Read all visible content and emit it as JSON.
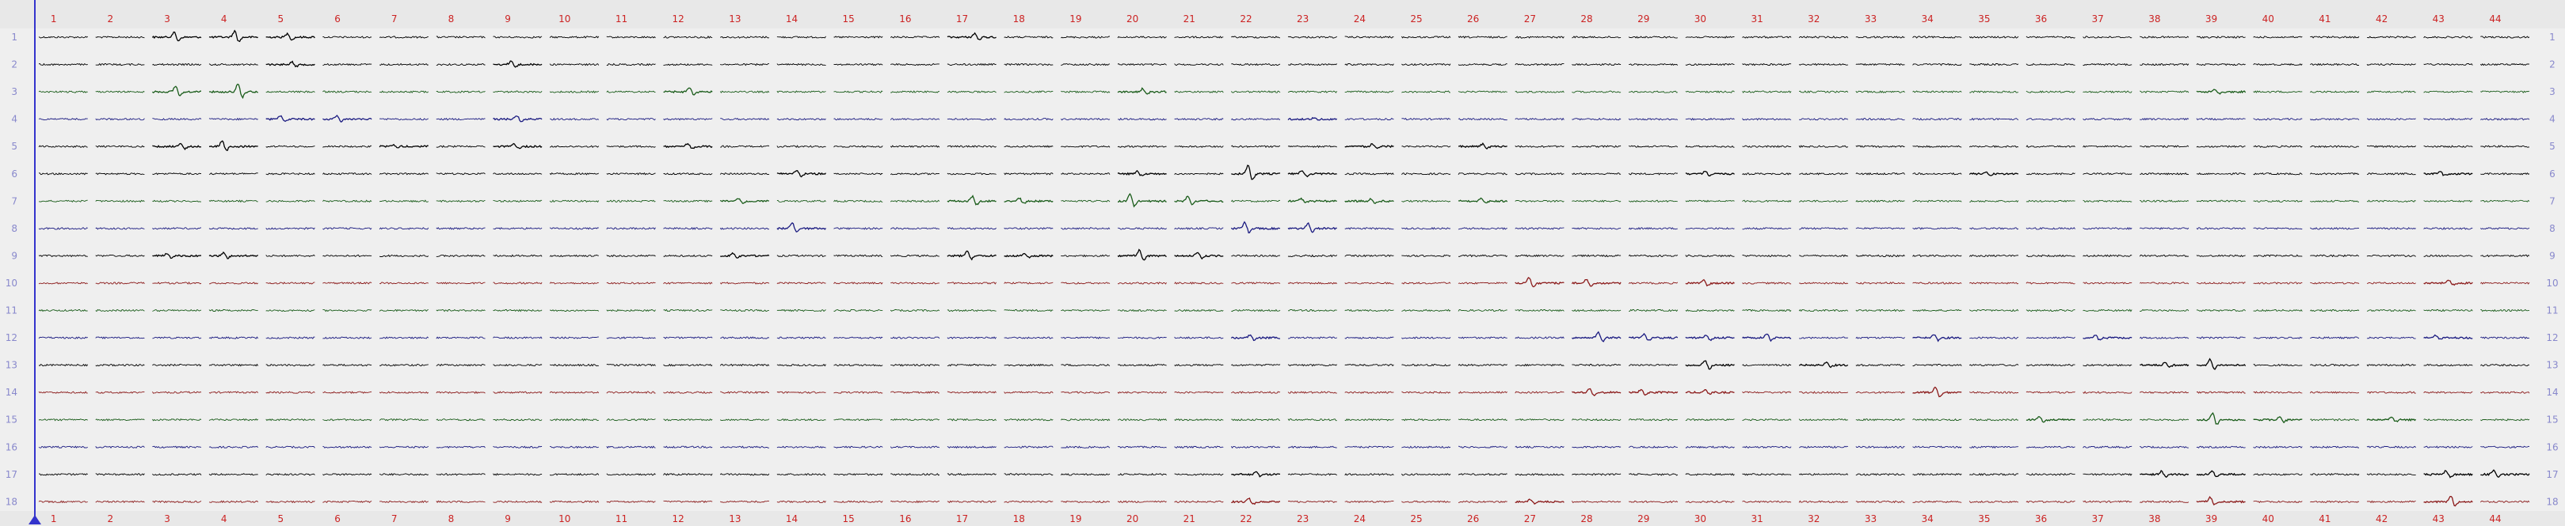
{
  "columns": [
    "1",
    "2",
    "3",
    "4",
    "5",
    "6",
    "7",
    "8",
    "9",
    "10",
    "11",
    "12",
    "13",
    "14",
    "15",
    "16",
    "17",
    "18",
    "19",
    "20",
    "21",
    "22",
    "23",
    "24",
    "25",
    "26",
    "27",
    "28",
    "29",
    "30",
    "31",
    "32",
    "33",
    "34",
    "35",
    "36",
    "37",
    "38",
    "39",
    "40",
    "41",
    "42",
    "43",
    "44"
  ],
  "rows": [
    "1",
    "2",
    "3",
    "4",
    "5",
    "6",
    "7",
    "8",
    "9",
    "10",
    "11",
    "12",
    "13",
    "14",
    "15",
    "16",
    "17",
    "18"
  ],
  "colors": {
    "background": "#efefef",
    "grid_line": "#dddddd",
    "column_label": "#cc2222",
    "row_label": "#8888cc",
    "cursor": "#3333cc",
    "trace_default": "#000000",
    "trace_blue": "#1a1a80",
    "trace_green": "#1a5c1a",
    "trace_red": "#8b1a1a"
  },
  "row_trace_colors": [
    "default",
    "default",
    "green",
    "blue",
    "default",
    "default",
    "green",
    "blue",
    "default",
    "red",
    "green",
    "blue",
    "default",
    "red",
    "green",
    "blue",
    "default",
    "red"
  ],
  "spikes": [
    [
      1,
      3,
      1.0
    ],
    [
      1,
      4,
      1.0
    ],
    [
      1,
      5,
      0.6
    ],
    [
      1,
      17,
      0.6
    ],
    [
      1,
      3,
      0.8
    ],
    [
      2,
      5,
      0.5
    ],
    [
      2,
      9,
      0.6
    ],
    [
      3,
      3,
      0.9
    ],
    [
      3,
      4,
      1.3
    ],
    [
      3,
      12,
      0.7
    ],
    [
      3,
      20,
      0.5
    ],
    [
      3,
      39,
      0.4
    ],
    [
      4,
      5,
      0.6
    ],
    [
      4,
      6,
      0.5
    ],
    [
      4,
      9,
      0.6
    ],
    [
      4,
      23,
      0.3
    ],
    [
      5,
      3,
      0.5
    ],
    [
      5,
      4,
      0.9
    ],
    [
      5,
      7,
      0.3
    ],
    [
      5,
      9,
      0.4
    ],
    [
      5,
      12,
      0.5
    ],
    [
      5,
      24,
      0.4
    ],
    [
      5,
      26,
      0.4
    ],
    [
      6,
      14,
      0.6
    ],
    [
      6,
      20,
      0.4
    ],
    [
      6,
      22,
      1.4
    ],
    [
      6,
      23,
      0.6
    ],
    [
      6,
      30,
      0.4
    ],
    [
      6,
      35,
      0.4
    ],
    [
      6,
      43,
      0.4
    ],
    [
      7,
      13,
      0.5
    ],
    [
      7,
      17,
      0.8
    ],
    [
      7,
      18,
      0.5
    ],
    [
      7,
      20,
      1.2
    ],
    [
      7,
      21,
      0.9
    ],
    [
      7,
      23,
      0.4
    ],
    [
      7,
      24,
      0.4
    ],
    [
      7,
      26,
      0.5
    ],
    [
      8,
      14,
      0.9
    ],
    [
      8,
      22,
      1.0
    ],
    [
      8,
      23,
      0.8
    ],
    [
      9,
      4,
      0.5
    ],
    [
      9,
      13,
      0.4
    ],
    [
      9,
      17,
      0.7
    ],
    [
      9,
      18,
      0.4
    ],
    [
      9,
      20,
      1.0
    ],
    [
      9,
      21,
      0.5
    ],
    [
      9,
      3,
      0.4
    ],
    [
      10,
      27,
      0.9
    ],
    [
      10,
      28,
      0.6
    ],
    [
      10,
      30,
      0.5
    ],
    [
      10,
      43,
      0.4
    ],
    [
      12,
      22,
      0.5
    ],
    [
      12,
      28,
      0.9
    ],
    [
      12,
      29,
      0.6
    ],
    [
      12,
      30,
      0.5
    ],
    [
      12,
      31,
      0.6
    ],
    [
      12,
      34,
      0.6
    ],
    [
      12,
      37,
      0.4
    ],
    [
      12,
      43,
      0.4
    ],
    [
      13,
      30,
      0.8
    ],
    [
      13,
      32,
      0.4
    ],
    [
      13,
      39,
      0.9
    ],
    [
      13,
      38,
      0.4
    ],
    [
      14,
      28,
      0.6
    ],
    [
      14,
      29,
      0.5
    ],
    [
      14,
      30,
      0.4
    ],
    [
      14,
      34,
      0.9
    ],
    [
      15,
      36,
      0.5
    ],
    [
      15,
      39,
      1.0
    ],
    [
      15,
      40,
      0.5
    ],
    [
      15,
      42,
      0.5
    ],
    [
      17,
      38,
      0.5
    ],
    [
      17,
      39,
      0.5
    ],
    [
      17,
      43,
      0.6
    ],
    [
      17,
      44,
      0.8
    ],
    [
      17,
      22,
      0.4
    ],
    [
      18,
      22,
      0.6
    ],
    [
      18,
      27,
      0.4
    ],
    [
      18,
      39,
      0.7
    ],
    [
      18,
      43,
      0.9
    ]
  ]
}
